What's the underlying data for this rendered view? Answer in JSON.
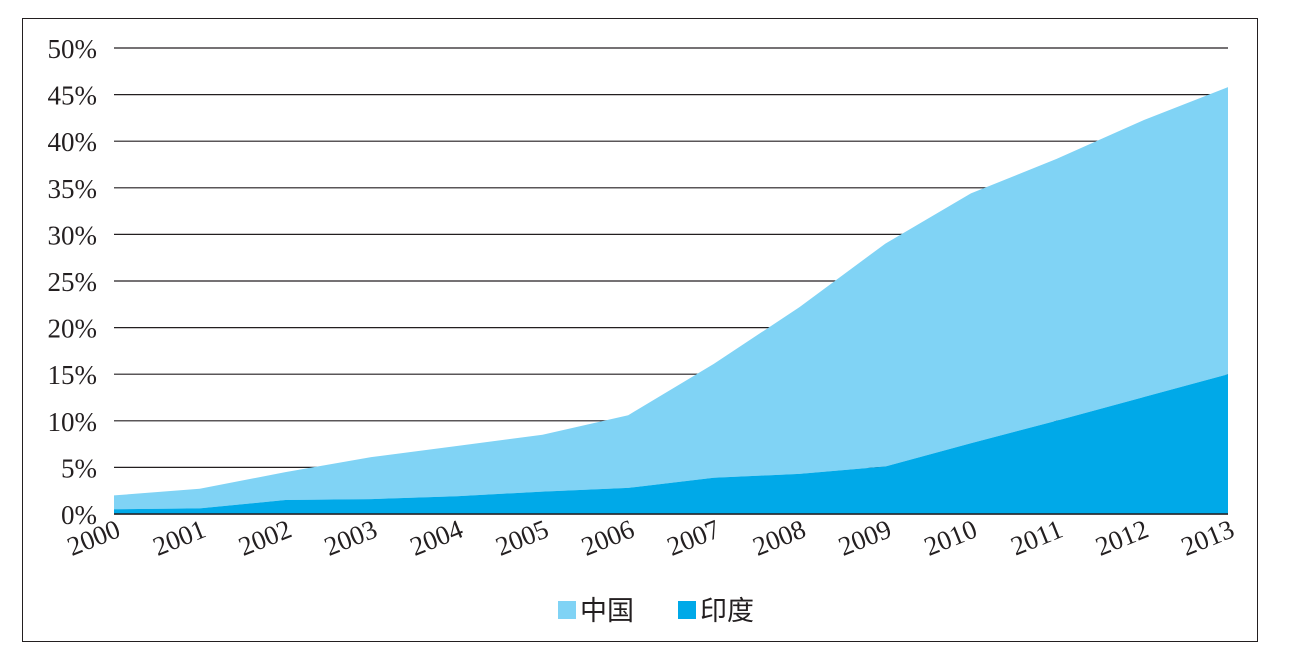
{
  "chart_data": {
    "type": "area",
    "stacked": true,
    "x": [
      "2000",
      "2001",
      "2002",
      "2003",
      "2004",
      "2005",
      "2006",
      "2007",
      "2008",
      "2009",
      "2010",
      "2011",
      "2012",
      "2013"
    ],
    "series": [
      {
        "name": "印度",
        "color": "#00a9e8",
        "values": [
          0.5,
          0.6,
          1.5,
          1.6,
          1.9,
          2.4,
          2.8,
          3.9,
          4.3,
          5.1,
          7.6,
          10.0,
          12.5,
          15.0
        ]
      },
      {
        "name": "中国",
        "color": "#80d3f5",
        "values": [
          1.5,
          2.1,
          3.0,
          4.5,
          5.4,
          6.1,
          7.8,
          12.2,
          17.9,
          23.9,
          26.8,
          28.1,
          29.7,
          30.8
        ]
      }
    ],
    "ylim": [
      0,
      50
    ],
    "yticks": [
      0,
      5,
      10,
      15,
      20,
      25,
      30,
      35,
      40,
      45,
      50
    ],
    "ytick_labels": [
      "0%",
      "5%",
      "10%",
      "15%",
      "20%",
      "25%",
      "30%",
      "35%",
      "40%",
      "45%",
      "50%"
    ],
    "title": "",
    "xlabel": "",
    "ylabel": "",
    "grid": "horizontal",
    "legend_position": "bottom-center",
    "legend": [
      "中国",
      "印度"
    ]
  }
}
